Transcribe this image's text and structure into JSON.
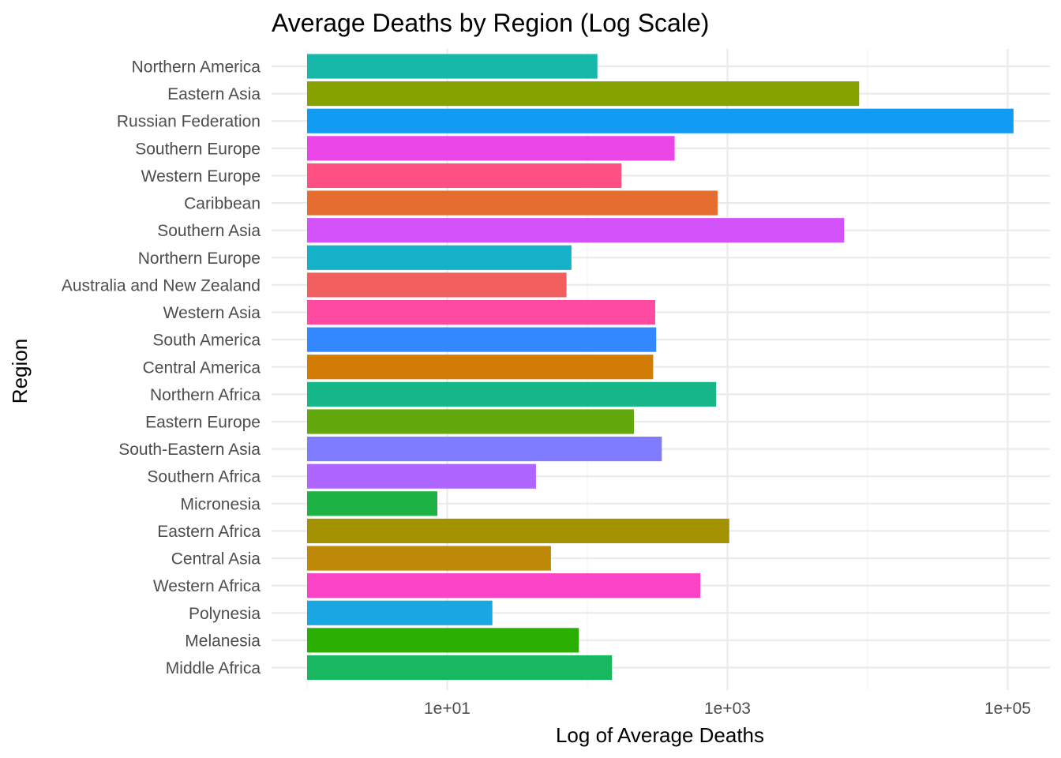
{
  "chart_data": {
    "type": "bar",
    "orientation": "horizontal",
    "title": "Average Deaths by Region (Log Scale)",
    "xlabel": "Log of Average Deaths",
    "ylabel": "Region",
    "x_scale": "log10",
    "xlim": [
      1,
      100000
    ],
    "x_ticks": [
      10,
      1000,
      100000
    ],
    "x_tick_labels": [
      "1e+01",
      "1e+03",
      "1e+05"
    ],
    "grid": true,
    "legend": "none",
    "categories": [
      "Northern America",
      "Eastern Asia",
      "Russian Federation",
      "Southern Europe",
      "Western Europe",
      "Caribbean",
      "Southern Asia",
      "Northern Europe",
      "Australia and New Zealand",
      "Western Asia",
      "South America",
      "Central America",
      "Northern Africa",
      "Eastern Europe",
      "South-Eastern Asia",
      "Southern Africa",
      "Micronesia",
      "Eastern Africa",
      "Central Asia",
      "Western Africa",
      "Polynesia",
      "Melanesia",
      "Middle Africa"
    ],
    "values": [
      118,
      8700,
      110000,
      420,
      175,
      850,
      6800,
      77,
      71,
      305,
      310,
      295,
      830,
      215,
      340,
      43,
      8.5,
      1030,
      55,
      640,
      21,
      87,
      150
    ],
    "colors": [
      "#17b7a9",
      "#86a200",
      "#129bf3",
      "#ea46e7",
      "#fe5082",
      "#e56d30",
      "#d452f9",
      "#14b1c8",
      "#f15f5e",
      "#fe4aa0",
      "#3388ff",
      "#d37c05",
      "#18b78a",
      "#63a80c",
      "#7f7cff",
      "#ae66ff",
      "#1cb344",
      "#a59202",
      "#bd8906",
      "#fb43c6",
      "#19a6e3",
      "#2aae02",
      "#18b760"
    ]
  }
}
